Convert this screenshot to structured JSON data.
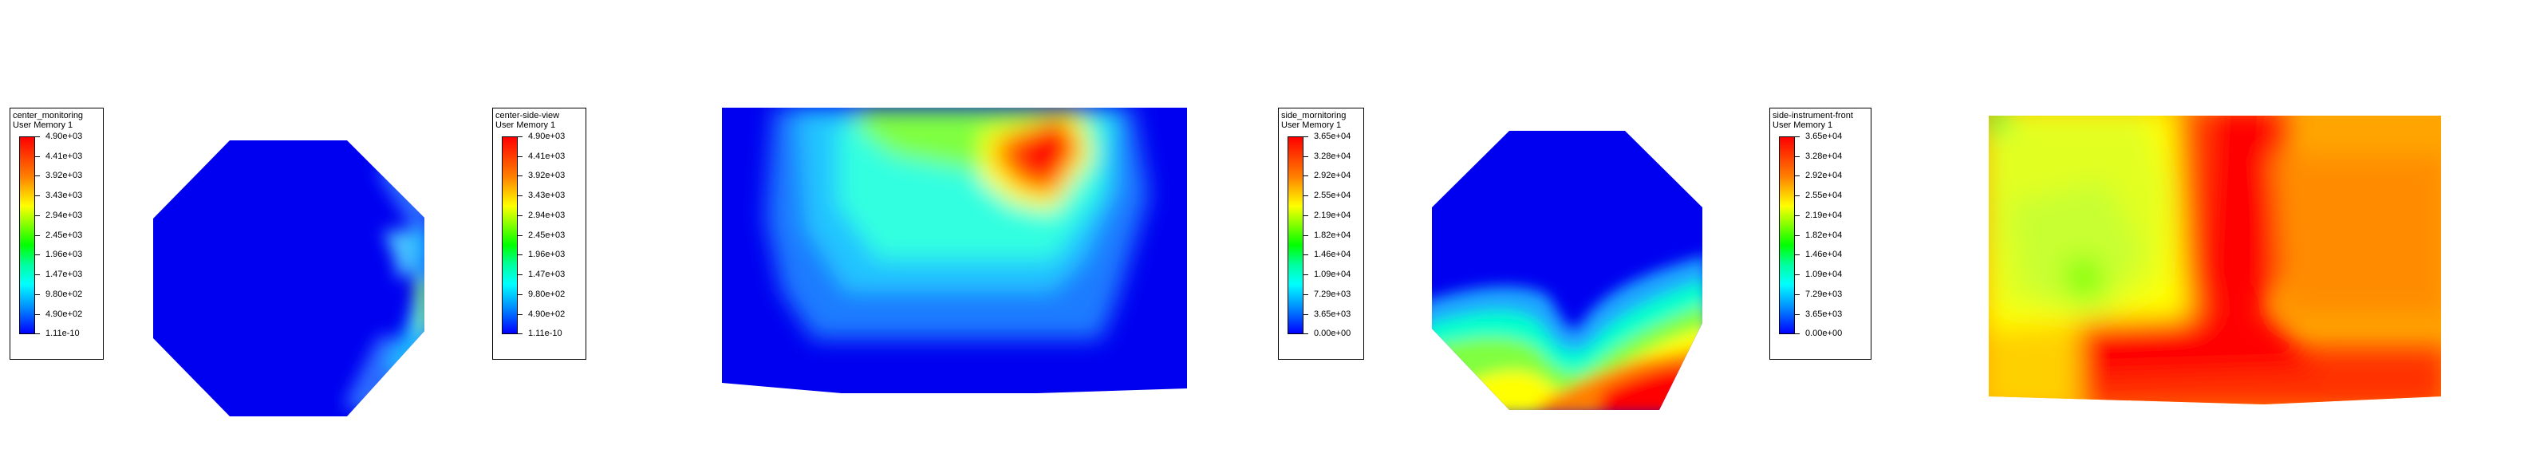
{
  "panels": [
    {
      "legend_title": "center_monitoring",
      "legend_subtitle": "User Memory 1",
      "legend_values": [
        "4.90e+03",
        "4.41e+03",
        "3.92e+03",
        "3.43e+03",
        "2.94e+03",
        "2.45e+03",
        "1.96e+03",
        "1.47e+03",
        "9.80e+02",
        "4.90e+02",
        "1.11e-10"
      ]
    },
    {
      "legend_title": "center-side-view",
      "legend_subtitle": "User Memory 1",
      "legend_values": [
        "4.90e+03",
        "4.41e+03",
        "3.92e+03",
        "3.43e+03",
        "2.94e+03",
        "2.45e+03",
        "1.96e+03",
        "1.47e+03",
        "9.80e+02",
        "4.90e+02",
        "1.11e-10"
      ]
    },
    {
      "legend_title": "side_mornitoring",
      "legend_subtitle": "User Memory 1",
      "legend_values": [
        "3.65e+04",
        "3.28e+04",
        "2.92e+04",
        "2.55e+04",
        "2.19e+04",
        "1.82e+04",
        "1.46e+04",
        "1.09e+04",
        "7.29e+03",
        "3.65e+03",
        "0.00e+00"
      ]
    },
    {
      "legend_title": "side-instrument-front",
      "legend_subtitle": "User Memory 1",
      "legend_values": [
        "3.65e+04",
        "3.28e+04",
        "2.92e+04",
        "2.55e+04",
        "2.19e+04",
        "1.82e+04",
        "1.46e+04",
        "1.09e+04",
        "7.29e+03",
        "3.65e+03",
        "0.00e+00"
      ]
    }
  ],
  "colormap": [
    "#ff0000",
    "#ff7f00",
    "#ffff00",
    "#7fff00",
    "#00ff00",
    "#00ff9f",
    "#00ffff",
    "#0080ff",
    "#0000ff"
  ]
}
